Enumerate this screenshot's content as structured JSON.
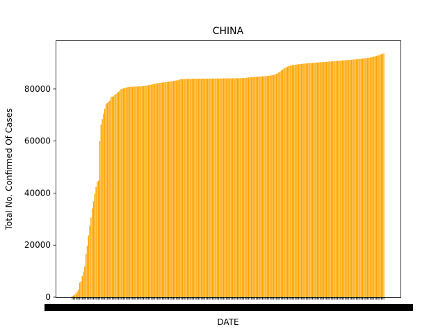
{
  "chart_data": {
    "type": "bar",
    "title": "CHINA",
    "xlabel": "DATE",
    "ylabel": "Total No. Confirmed Of Cases",
    "ylim": [
      0,
      98700
    ],
    "yticks": [
      0,
      20000,
      40000,
      60000,
      80000
    ],
    "ytick_labels": [
      "0",
      "20000",
      "40000",
      "60000",
      "80000"
    ],
    "bar_color": "#ffa500",
    "grid": false,
    "legend": "none",
    "xtick_labels_note": "Date tick labels are drawn for every bar and overlap into an illegible dark band.",
    "values": [
      548,
      643,
      920,
      1406,
      2075,
      2877,
      5509,
      6087,
      8141,
      9802,
      11891,
      16630,
      19716,
      23707,
      27440,
      30587,
      34110,
      36814,
      39829,
      42354,
      44386,
      44759,
      59895,
      66358,
      68413,
      70513,
      72434,
      74211,
      74619,
      75077,
      75550,
      77001,
      77022,
      77241,
      77754,
      78166,
      78600,
      78928,
      79356,
      79932,
      80136,
      80261,
      80386,
      80537,
      80690,
      80770,
      80823,
      80860,
      80887,
      80921,
      80932,
      80945,
      80977,
      81003,
      81033,
      81058,
      81102,
      81156,
      81250,
      81305,
      81435,
      81498,
      81591,
      81661,
      81782,
      81897,
      81999,
      82122,
      82198,
      82279,
      82361,
      82432,
      82511,
      82543,
      82602,
      82665,
      82718,
      82809,
      82883,
      82941,
      83014,
      83134,
      83213,
      83306,
      83356,
      83403,
      83760,
      83787,
      83805,
      83817,
      83853,
      83868,
      83884,
      83899,
      83909,
      83912,
      83918,
      83940,
      83944,
      83956,
      83959,
      83959,
      83964,
      83966,
      83970,
      83975,
      83976,
      83990,
      83990,
      83994,
      84010,
      84011,
      84011,
      84018,
      84024,
      84029,
      84038,
      84044,
      84054,
      84063,
      84063,
      84081,
      84084,
      84095,
      84102,
      84103,
      84106,
      84106,
      84123,
      84128,
      84146,
      84154,
      84165,
      84172,
      84177,
      84186,
      84191,
      84198,
      84228,
      84335,
      84378,
      84422,
      84458,
      84494,
      84543,
      84624,
      84653,
      84701,
      84743,
      84780,
      84808,
      84830,
      84871,
      84888,
      84917,
      84950,
      85010,
      85070,
      85160,
      85260,
      85320,
      85400,
      85600,
      85800,
      86050,
      86350,
      86700,
      87100,
      87500,
      87900,
      88150,
      88400,
      88600,
      88800,
      88950,
      89050,
      89150,
      89250,
      89330,
      89400,
      89470,
      89530,
      89590,
      89640,
      89690,
      89740,
      89780,
      89820,
      89860,
      89900,
      89940,
      89980,
      90020,
      90060,
      90100,
      90140,
      90180,
      90220,
      90260,
      90300,
      90340,
      90380,
      90420,
      90460,
      90500,
      90540,
      90580,
      90620,
      90660,
      90700,
      90740,
      90780,
      90820,
      90860,
      90900,
      90940,
      90980,
      91020,
      91060,
      91100,
      91140,
      91180,
      91220,
      91260,
      91300,
      91340,
      91380,
      91420,
      91470,
      91520,
      91570,
      91620,
      91680,
      91740,
      91800,
      91870,
      91950,
      92030,
      92120,
      92220,
      92330,
      92450,
      92580,
      92720,
      92870,
      93030,
      93200,
      93380,
      93560,
      93740
    ]
  }
}
